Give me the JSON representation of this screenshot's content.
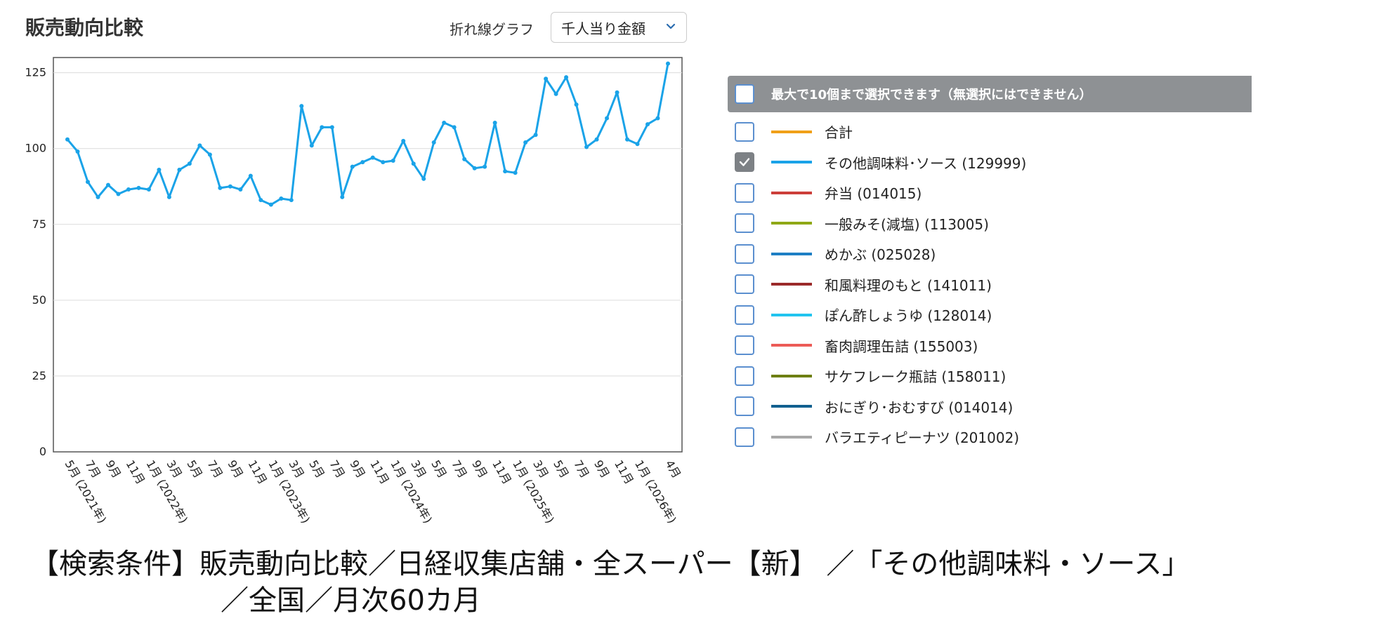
{
  "header": {
    "title": "販売動向比較",
    "chart_type_label": "折れ線グラフ",
    "metric_selected": "千人当り金額"
  },
  "legend": {
    "header_text": "最大で10個まで選択できます（無選択にはできません）",
    "items": [
      {
        "label": "合計",
        "color": "#f0a019",
        "checked": false
      },
      {
        "label": "その他調味料･ソース (129999)",
        "color": "#1aa3e8",
        "checked": true
      },
      {
        "label": "弁当 (014015)",
        "color": "#cc3f3a",
        "checked": false
      },
      {
        "label": "一般みそ(減塩) (113005)",
        "color": "#8fa816",
        "checked": false
      },
      {
        "label": "めかぶ (025028)",
        "color": "#1e7fc4",
        "checked": false
      },
      {
        "label": "和風料理のもと (141011)",
        "color": "#9b2a2a",
        "checked": false
      },
      {
        "label": "ぽん酢しょうゆ (128014)",
        "color": "#22c4ef",
        "checked": false
      },
      {
        "label": "畜肉調理缶詰 (155003)",
        "color": "#ec5b57",
        "checked": false
      },
      {
        "label": "サケフレーク瓶詰 (158011)",
        "color": "#6e7f12",
        "checked": false
      },
      {
        "label": "おにぎり･おむすび (014014)",
        "color": "#11608f",
        "checked": false
      },
      {
        "label": "バラエティピーナツ (201002)",
        "color": "#a8a8a8",
        "checked": false
      }
    ]
  },
  "footer": {
    "line1": "【検索条件】販売動向比較／日経収集店舗・全スーパー【新】 ／「その他調味料・ソース」",
    "line2": "／全国／月次60カ月"
  },
  "chart_data": {
    "type": "line",
    "ylim": [
      0,
      130
    ],
    "yticks": [
      0,
      25,
      50,
      75,
      100,
      125
    ],
    "grid": true,
    "x_tick_labels": [
      "5月 (2021年)",
      "7月",
      "9月",
      "11月",
      "1月 (2022年)",
      "3月",
      "5月",
      "7月",
      "9月",
      "11月",
      "1月 (2023年)",
      "3月",
      "5月",
      "7月",
      "9月",
      "11月",
      "1月 (2024年)",
      "3月",
      "5月",
      "7月",
      "9月",
      "11月",
      "1月 (2025年)",
      "3月",
      "5月",
      "7月",
      "9月",
      "11月",
      "1月 (2026年)",
      "4月"
    ],
    "x_tick_positions": [
      0,
      2,
      4,
      6,
      8,
      10,
      12,
      14,
      16,
      18,
      20,
      22,
      24,
      26,
      28,
      30,
      32,
      34,
      36,
      38,
      40,
      42,
      44,
      46,
      48,
      50,
      52,
      54,
      56,
      59
    ],
    "series": [
      {
        "name": "その他調味料･ソース (129999)",
        "color": "#1aa3e8",
        "values": [
          103,
          99,
          89,
          84,
          88,
          85,
          86.5,
          87,
          86.5,
          93,
          84,
          93,
          95,
          101,
          98,
          87,
          87.5,
          86.5,
          91,
          83,
          81.5,
          83.5,
          83,
          114,
          101,
          107,
          107,
          84,
          94,
          95.5,
          97,
          95.5,
          96,
          102.5,
          95,
          90,
          102,
          108.5,
          107,
          96.5,
          93.5,
          94,
          108.5,
          92.5,
          92,
          102,
          104.5,
          123,
          118,
          123.5,
          114.5,
          100.5,
          103,
          110,
          118.5,
          103,
          101.5,
          108,
          110,
          128
        ]
      }
    ]
  }
}
